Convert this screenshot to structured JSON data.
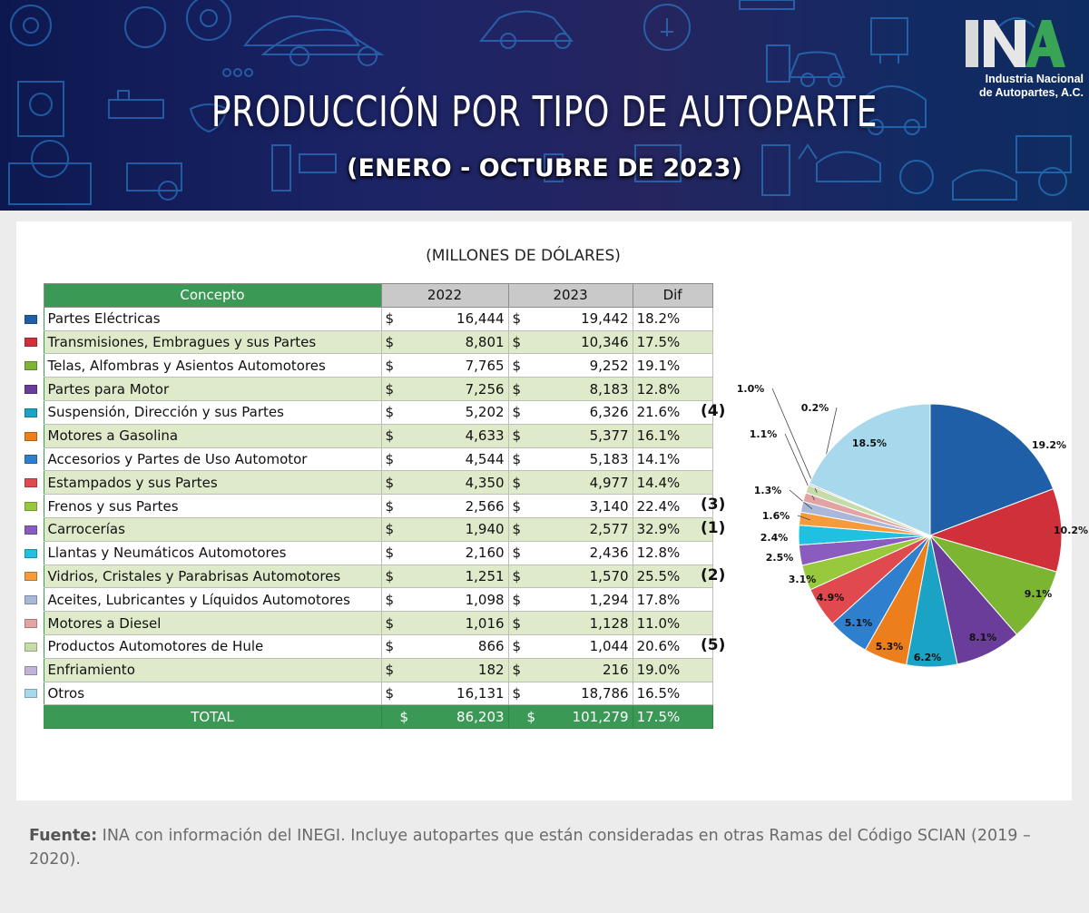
{
  "header": {
    "title": "Producción por tipo de Autoparte",
    "subtitle": "(ENERO - OCTUBRE DE 2023)",
    "logo_text": "INA",
    "org_line1": "Industria Nacional",
    "org_line2": "de Autopartes, A.C."
  },
  "units_label": "(MILLONES DE DÓLARES)",
  "table": {
    "headers": [
      "Concepto",
      "2022",
      "2023",
      "Dif"
    ],
    "currency": "$",
    "rows": [
      {
        "concepto": "Partes Eléctricas",
        "v2022": "16,444",
        "v2023": "19,442",
        "dif": "18.2%",
        "note": ""
      },
      {
        "concepto": "Transmisiones, Embragues y sus Partes",
        "v2022": "8,801",
        "v2023": "10,346",
        "dif": "17.5%",
        "note": ""
      },
      {
        "concepto": "Telas, Alfombras y Asientos Automotores",
        "v2022": "7,765",
        "v2023": "9,252",
        "dif": "19.1%",
        "note": ""
      },
      {
        "concepto": "Partes para Motor",
        "v2022": "7,256",
        "v2023": "8,183",
        "dif": "12.8%",
        "note": ""
      },
      {
        "concepto": "Suspensión, Dirección y sus Partes",
        "v2022": "5,202",
        "v2023": "6,326",
        "dif": "21.6%",
        "note": "(4)"
      },
      {
        "concepto": "Motores a Gasolina",
        "v2022": "4,633",
        "v2023": "5,377",
        "dif": "16.1%",
        "note": ""
      },
      {
        "concepto": "Accesorios y Partes de Uso Automotor",
        "v2022": "4,544",
        "v2023": "5,183",
        "dif": "14.1%",
        "note": ""
      },
      {
        "concepto": "Estampados y sus Partes",
        "v2022": "4,350",
        "v2023": "4,977",
        "dif": "14.4%",
        "note": ""
      },
      {
        "concepto": "Frenos y sus Partes",
        "v2022": "2,566",
        "v2023": "3,140",
        "dif": "22.4%",
        "note": "(3)"
      },
      {
        "concepto": "Carrocerías",
        "v2022": "1,940",
        "v2023": "2,577",
        "dif": "32.9%",
        "note": "(1)"
      },
      {
        "concepto": "Llantas y Neumáticos Automotores",
        "v2022": "2,160",
        "v2023": "2,436",
        "dif": "12.8%",
        "note": ""
      },
      {
        "concepto": "Vidrios, Cristales y Parabrisas Automotores",
        "v2022": "1,251",
        "v2023": "1,570",
        "dif": "25.5%",
        "note": "(2)"
      },
      {
        "concepto": "Aceites, Lubricantes y Líquidos Automotores",
        "v2022": "1,098",
        "v2023": "1,294",
        "dif": "17.8%",
        "note": ""
      },
      {
        "concepto": "Motores a Diesel",
        "v2022": "1,016",
        "v2023": "1,128",
        "dif": "11.0%",
        "note": ""
      },
      {
        "concepto": "Productos Automotores de Hule",
        "v2022": "866",
        "v2023": "1,044",
        "dif": "20.6%",
        "note": "(5)"
      },
      {
        "concepto": "Enfriamiento",
        "v2022": "182",
        "v2023": "216",
        "dif": "19.0%",
        "note": ""
      },
      {
        "concepto": "Otros",
        "v2022": "16,131",
        "v2023": "18,786",
        "dif": "16.5%",
        "note": ""
      }
    ],
    "total": {
      "concepto": "TOTAL",
      "v2022": "86,203",
      "v2023": "101,279",
      "dif": "17.5%"
    }
  },
  "chart_data": {
    "type": "pie",
    "slices": [
      {
        "label": "Partes Eléctricas",
        "value": 19.2,
        "display": "19.2%",
        "color": "#1f5fa8"
      },
      {
        "label": "Transmisiones, Embragues y sus Partes",
        "value": 10.2,
        "display": "10.2%",
        "color": "#d0303a"
      },
      {
        "label": "Telas, Alfombras y Asientos Automotores",
        "value": 9.1,
        "display": "9.1%",
        "color": "#7cb531"
      },
      {
        "label": "Partes para Motor",
        "value": 8.1,
        "display": "8.1%",
        "color": "#6a3d9a"
      },
      {
        "label": "Suspensión, Dirección y sus Partes",
        "value": 6.2,
        "display": "6.2%",
        "color": "#1aa3c4"
      },
      {
        "label": "Motores a Gasolina",
        "value": 5.3,
        "display": "5.3%",
        "color": "#ec7f1c"
      },
      {
        "label": "Accesorios y Partes de Uso Automotor",
        "value": 5.1,
        "display": "5.1%",
        "color": "#2f7fcf"
      },
      {
        "label": "Estampados y sus Partes",
        "value": 4.9,
        "display": "4.9%",
        "color": "#e04a4f"
      },
      {
        "label": "Frenos y sus Partes",
        "value": 3.1,
        "display": "3.1%",
        "color": "#98c93c"
      },
      {
        "label": "Carrocerías",
        "value": 2.5,
        "display": "2.5%",
        "color": "#8a5cbf"
      },
      {
        "label": "Llantas y Neumáticos Automotores",
        "value": 2.4,
        "display": "2.4%",
        "color": "#1fc0e0"
      },
      {
        "label": "Vidrios, Cristales y Parabrisas Automotores",
        "value": 1.6,
        "display": "1.6%",
        "color": "#f59b3c"
      },
      {
        "label": "Aceites, Lubricantes y Líquidos Automotores",
        "value": 1.3,
        "display": "1.3%",
        "color": "#a9b8d8"
      },
      {
        "label": "Motores a Diesel",
        "value": 1.1,
        "display": "1.1%",
        "color": "#e3a3a3"
      },
      {
        "label": "Productos Automotores de Hule",
        "value": 1.0,
        "display": "1.0%",
        "color": "#c5dba8"
      },
      {
        "label": "Enfriamiento",
        "value": 0.2,
        "display": "0.2%",
        "color": "#c3b3d8"
      },
      {
        "label": "Otros",
        "value": 18.5,
        "display": "18.5%",
        "color": "#a8d8ec"
      }
    ]
  },
  "footer": {
    "source_label": "Fuente:",
    "source_text": " INA con información del INEGI. Incluye autopartes que están consideradas en otras Ramas del Código SCIAN (2019 – 2020)."
  }
}
